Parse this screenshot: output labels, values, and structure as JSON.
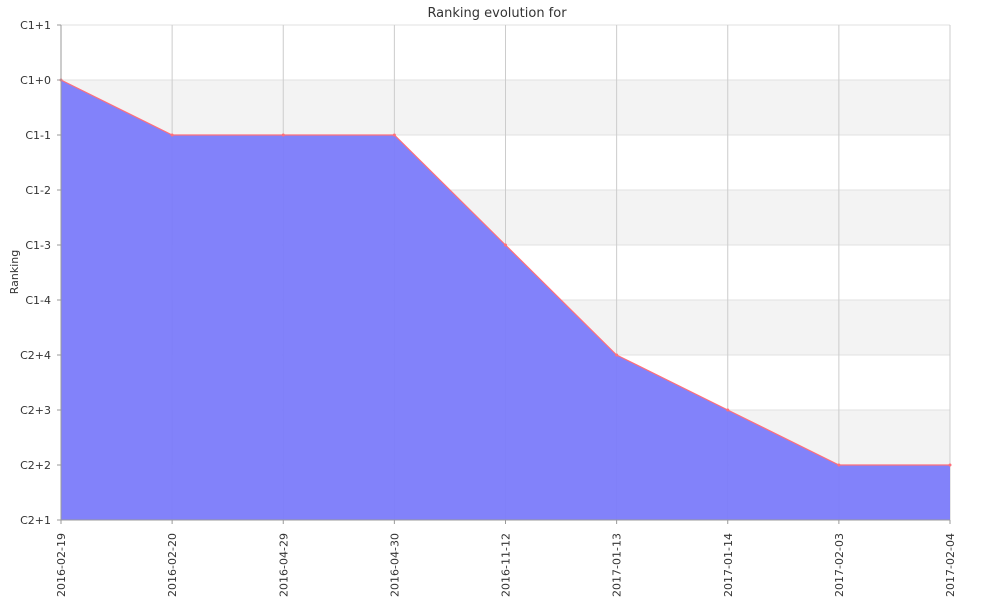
{
  "chart_data": {
    "type": "area",
    "title": "Ranking evolution for",
    "ylabel": "Ranking",
    "xlabel": "",
    "y_categories": [
      "C2+1",
      "C2+2",
      "C2+3",
      "C2+4",
      "C1-4",
      "C1-3",
      "C1-2",
      "C1-1",
      "C1+0",
      "C1+1"
    ],
    "categories": [
      "2016-02-19",
      "2016-02-20",
      "2016-04-29",
      "2016-04-30",
      "2016-11-12",
      "2017-01-13",
      "2017-01-14",
      "2017-02-03",
      "2017-02-04"
    ],
    "series": [
      {
        "values": [
          "C1+0",
          "C1-1",
          "C1-1",
          "C1-1",
          "C1-3",
          "C2+4",
          "C2+3",
          "C2+2",
          "C2+2"
        ]
      }
    ],
    "grid": true,
    "colors": {
      "fill": "#7b7bfa",
      "line": "#ff6f7a",
      "band": "#f3f3f3",
      "grid": "#cccccc",
      "axis": "#999999"
    }
  }
}
